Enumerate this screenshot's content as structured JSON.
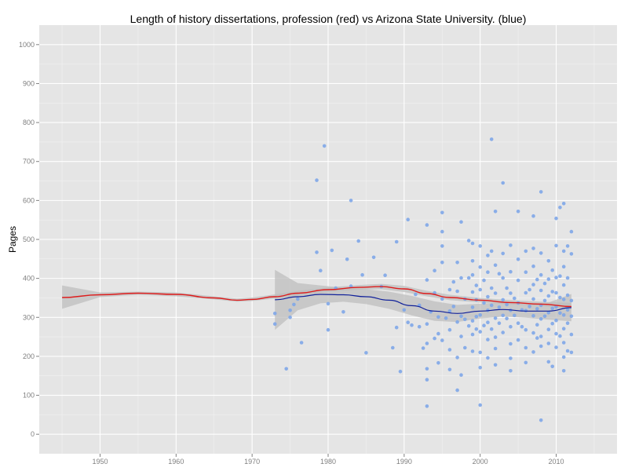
{
  "chart_data": {
    "type": "scatter",
    "title": "Length of history dissertations, profession (red) vs Arizona State University. (blue)",
    "xlabel": "",
    "ylabel": "Pages",
    "xlim": [
      1942,
      2018
    ],
    "ylim": [
      -50,
      1050
    ],
    "x_ticks": [
      1950,
      1960,
      1970,
      1980,
      1990,
      2000,
      2010
    ],
    "y_ticks": [
      0,
      100,
      200,
      300,
      400,
      500,
      600,
      700,
      800,
      900,
      1000
    ],
    "grid": true,
    "legend": "none",
    "colors": {
      "panel_background": "#e5e5e5",
      "grid_major": "#ffffff",
      "grid_minor": "#f2f2f2",
      "points": "#7ea6e8",
      "profession_line": "#dd1c1c",
      "asu_line": "#10209a",
      "confidence_band": "#bdbdbd"
    },
    "series": [
      {
        "kind": "points",
        "points": [
          [
            1973,
            310
          ],
          [
            1973,
            283
          ],
          [
            1974.5,
            168
          ],
          [
            1975,
            318
          ],
          [
            1975,
            300
          ],
          [
            1975.5,
            333
          ],
          [
            1976,
            347
          ],
          [
            1976.5,
            235
          ],
          [
            1978.5,
            467
          ],
          [
            1978.5,
            652
          ],
          [
            1979,
            420
          ],
          [
            1979.5,
            740
          ],
          [
            1980,
            268
          ],
          [
            1980,
            335
          ],
          [
            1980.5,
            472
          ],
          [
            1981,
            375
          ],
          [
            1982,
            314
          ],
          [
            1982.5,
            449
          ],
          [
            1983,
            600
          ],
          [
            1983,
            380
          ],
          [
            1984,
            496
          ],
          [
            1984.5,
            409
          ],
          [
            1985,
            209
          ],
          [
            1986,
            454
          ],
          [
            1987,
            379
          ],
          [
            1987.5,
            408
          ],
          [
            1988.5,
            222
          ],
          [
            1989,
            274
          ],
          [
            1989,
            494
          ],
          [
            1989.5,
            161
          ],
          [
            1990,
            319
          ],
          [
            1990.5,
            551
          ],
          [
            1990.5,
            287
          ],
          [
            1991,
            280
          ],
          [
            1991.5,
            359
          ],
          [
            1992,
            276
          ],
          [
            1992,
            331
          ],
          [
            1992.5,
            221
          ],
          [
            1993,
            537
          ],
          [
            1993,
            396
          ],
          [
            1993,
            283
          ],
          [
            1993,
            233
          ],
          [
            1993,
            168
          ],
          [
            1993,
            140
          ],
          [
            1993,
            72
          ],
          [
            1993.5,
            314
          ],
          [
            1994,
            420
          ],
          [
            1994,
            363
          ],
          [
            1994,
            246
          ],
          [
            1994.5,
            301
          ],
          [
            1994.5,
            258
          ],
          [
            1994.5,
            183
          ],
          [
            1995,
            569
          ],
          [
            1995,
            520
          ],
          [
            1995,
            483
          ],
          [
            1995,
            441
          ],
          [
            1995,
            347
          ],
          [
            1995,
            241
          ],
          [
            1995.5,
            298
          ],
          [
            1996,
            371
          ],
          [
            1996,
            316
          ],
          [
            1996,
            268
          ],
          [
            1996,
            217
          ],
          [
            1996,
            166
          ],
          [
            1996.5,
            391
          ],
          [
            1996.5,
            328
          ],
          [
            1997,
            441
          ],
          [
            1997,
            367
          ],
          [
            1997,
            288
          ],
          [
            1997,
            197
          ],
          [
            1997,
            113
          ],
          [
            1997.5,
            545
          ],
          [
            1997.5,
            401
          ],
          [
            1997.5,
            303
          ],
          [
            1997.5,
            251
          ],
          [
            1997.5,
            152
          ],
          [
            1998,
            347
          ],
          [
            1998,
            295
          ],
          [
            1998,
            222
          ],
          [
            1998.5,
            497
          ],
          [
            1998.5,
            401
          ],
          [
            1998.5,
            278
          ],
          [
            1999,
            490
          ],
          [
            1999,
            445
          ],
          [
            1999,
            409
          ],
          [
            1999,
            365
          ],
          [
            1999,
            326
          ],
          [
            1999,
            291
          ],
          [
            1999,
            256
          ],
          [
            1999,
            213
          ],
          [
            1999.5,
            382
          ],
          [
            1999.5,
            345
          ],
          [
            1999.5,
            302
          ],
          [
            1999.5,
            270
          ],
          [
            2000,
            483
          ],
          [
            2000,
            429
          ],
          [
            2000,
            371
          ],
          [
            2000,
            306
          ],
          [
            2000,
            263
          ],
          [
            2000,
            210
          ],
          [
            2000,
            171
          ],
          [
            2000,
            75
          ],
          [
            2000.5,
            395
          ],
          [
            2000.5,
            337
          ],
          [
            2000.5,
            279
          ],
          [
            2001,
            459
          ],
          [
            2001,
            416
          ],
          [
            2001,
            353
          ],
          [
            2001,
            318
          ],
          [
            2001,
            287
          ],
          [
            2001,
            243
          ],
          [
            2001,
            196
          ],
          [
            2001.5,
            757
          ],
          [
            2001.5,
            470
          ],
          [
            2001.5,
            375
          ],
          [
            2001.5,
            331
          ],
          [
            2001.5,
            270
          ],
          [
            2002,
            572
          ],
          [
            2002,
            434
          ],
          [
            2002,
            362
          ],
          [
            2002,
            298
          ],
          [
            2002,
            249
          ],
          [
            2002,
            220
          ],
          [
            2002,
            178
          ],
          [
            2002.5,
            412
          ],
          [
            2002.5,
            326
          ],
          [
            2002.5,
            285
          ],
          [
            2003,
            645
          ],
          [
            2003,
            464
          ],
          [
            2003,
            401
          ],
          [
            2003,
            345
          ],
          [
            2003,
            305
          ],
          [
            2003,
            261
          ],
          [
            2003.5,
            375
          ],
          [
            2003.5,
            333
          ],
          [
            2003.5,
            297
          ],
          [
            2004,
            485
          ],
          [
            2004,
            417
          ],
          [
            2004,
            362
          ],
          [
            2004,
            318
          ],
          [
            2004,
            276
          ],
          [
            2004,
            232
          ],
          [
            2004,
            195
          ],
          [
            2004,
            163
          ],
          [
            2004.5,
            349
          ],
          [
            2004.5,
            305
          ],
          [
            2005,
            572
          ],
          [
            2005,
            449
          ],
          [
            2005,
            395
          ],
          [
            2005,
            337
          ],
          [
            2005,
            285
          ],
          [
            2005,
            242
          ],
          [
            2005.5,
            319
          ],
          [
            2005.5,
            276
          ],
          [
            2006,
            470
          ],
          [
            2006,
            416
          ],
          [
            2006,
            363
          ],
          [
            2006,
            317
          ],
          [
            2006,
            268
          ],
          [
            2006,
            222
          ],
          [
            2006,
            184
          ],
          [
            2006.5,
            371
          ],
          [
            2006.5,
            328
          ],
          [
            2007,
            560
          ],
          [
            2007,
            477
          ],
          [
            2007,
            431
          ],
          [
            2007,
            384
          ],
          [
            2007,
            347
          ],
          [
            2007,
            304
          ],
          [
            2007,
            260
          ],
          [
            2007,
            211
          ],
          [
            2007.5,
            397
          ],
          [
            2007.5,
            322
          ],
          [
            2007.5,
            281
          ],
          [
            2007.5,
            247
          ],
          [
            2008,
            622
          ],
          [
            2008,
            465
          ],
          [
            2008,
            409
          ],
          [
            2008,
            369
          ],
          [
            2008,
            331
          ],
          [
            2008,
            296
          ],
          [
            2008,
            251
          ],
          [
            2008,
            226
          ],
          [
            2008,
            36
          ],
          [
            2008.5,
            387
          ],
          [
            2008.5,
            343
          ],
          [
            2008.5,
            303
          ],
          [
            2009,
            445
          ],
          [
            2009,
            398
          ],
          [
            2009,
            355
          ],
          [
            2009,
            312
          ],
          [
            2009,
            269
          ],
          [
            2009,
            233
          ],
          [
            2009,
            186
          ],
          [
            2009.5,
            421
          ],
          [
            2009.5,
            366
          ],
          [
            2009.5,
            323
          ],
          [
            2009.5,
            284
          ],
          [
            2009.5,
            174
          ],
          [
            2010,
            554
          ],
          [
            2010,
            484
          ],
          [
            2010,
            402
          ],
          [
            2010,
            363
          ],
          [
            2010,
            327
          ],
          [
            2010,
            292
          ],
          [
            2010,
            258
          ],
          [
            2010,
            223
          ],
          [
            2010.5,
            582
          ],
          [
            2010.5,
            406
          ],
          [
            2010.5,
            351
          ],
          [
            2010.5,
            311
          ],
          [
            2010.5,
            252
          ],
          [
            2011,
            592
          ],
          [
            2011,
            470
          ],
          [
            2011,
            430
          ],
          [
            2011,
            383
          ],
          [
            2011,
            346
          ],
          [
            2011,
            306
          ],
          [
            2011,
            271
          ],
          [
            2011,
            235
          ],
          [
            2011,
            198
          ],
          [
            2011,
            163
          ],
          [
            2011.5,
            483
          ],
          [
            2011.5,
            401
          ],
          [
            2011.5,
            357
          ],
          [
            2011.5,
            319
          ],
          [
            2011.5,
            285
          ],
          [
            2011.5,
            214
          ],
          [
            2012,
            520
          ],
          [
            2012,
            463
          ],
          [
            2012,
            343
          ],
          [
            2012,
            303
          ],
          [
            2012,
            256
          ],
          [
            2012,
            210
          ]
        ]
      },
      {
        "kind": "line",
        "x": [
          1945,
          1950,
          1955,
          1960,
          1965,
          1968,
          1970,
          1973,
          1976,
          1980,
          1984,
          1987,
          1990,
          1993,
          1996,
          2000,
          2004,
          2008,
          2012
        ],
        "y": [
          351,
          358,
          362,
          359,
          350,
          344,
          346,
          353,
          362,
          371,
          377,
          379,
          373,
          361,
          351,
          344,
          338,
          334,
          328
        ]
      },
      {
        "kind": "line",
        "x": [
          1973,
          1976,
          1979,
          1982,
          1985,
          1988,
          1991,
          1994,
          1997,
          2000,
          2003,
          2006,
          2009,
          2012
        ],
        "y": [
          345,
          353,
          359,
          358,
          353,
          344,
          330,
          316,
          310,
          316,
          320,
          316,
          316,
          325
        ]
      },
      {
        "kind": "band",
        "x": [
          1945,
          1950,
          1955,
          1960,
          1965,
          1968,
          1970,
          1973,
          1976,
          1980,
          1984,
          1987,
          1990,
          1993,
          1996,
          2000,
          2004,
          2008,
          2012
        ],
        "lower": [
          322,
          352,
          358,
          354,
          346,
          340,
          342,
          348,
          356,
          365,
          371,
          372,
          365,
          354,
          344,
          338,
          333,
          329,
          320
        ],
        "upper": [
          382,
          364,
          366,
          364,
          354,
          348,
          351,
          359,
          368,
          377,
          383,
          386,
          381,
          368,
          358,
          350,
          344,
          340,
          337
        ]
      },
      {
        "kind": "band",
        "x": [
          1973,
          1976,
          1979,
          1982,
          1985,
          1988,
          1991,
          1994,
          1997,
          2000,
          2003,
          2006,
          2009,
          2012
        ],
        "lower": [
          268,
          318,
          336,
          340,
          334,
          322,
          305,
          291,
          288,
          297,
          302,
          299,
          294,
          290
        ],
        "upper": [
          422,
          388,
          382,
          376,
          372,
          366,
          355,
          341,
          332,
          335,
          338,
          333,
          338,
          360
        ]
      }
    ]
  }
}
